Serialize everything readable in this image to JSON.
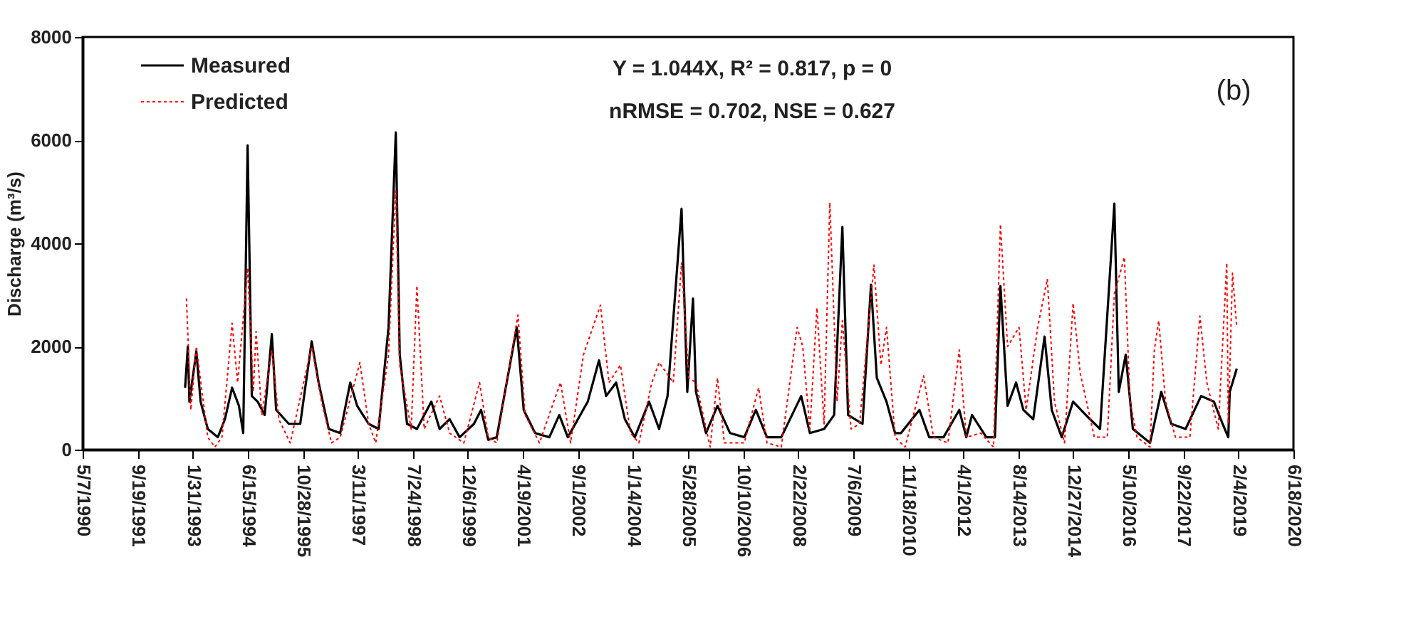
{
  "chart_data": {
    "type": "line",
    "ylabel": "Discharge (m³/s)",
    "annotations": [
      "Y = 1.044X, R² = 0.817, p = 0",
      "nRMSE = 0.702, NSE = 0.627",
      "(b)"
    ],
    "xlim": [
      "1990-05-07",
      "2020-06-18"
    ],
    "xticks": [
      {
        "value": "1990-05-07",
        "label": "5/7/1990"
      },
      {
        "value": "1991-09-19",
        "label": "9/19/1991"
      },
      {
        "value": "1993-01-31",
        "label": "1/31/1993"
      },
      {
        "value": "1994-06-15",
        "label": "6/15/1994"
      },
      {
        "value": "1995-10-28",
        "label": "10/28/1995"
      },
      {
        "value": "1997-03-11",
        "label": "3/11/1997"
      },
      {
        "value": "1998-07-24",
        "label": "7/24/1998"
      },
      {
        "value": "1999-12-06",
        "label": "12/6/1999"
      },
      {
        "value": "2001-04-19",
        "label": "4/19/2001"
      },
      {
        "value": "2002-09-01",
        "label": "9/1/2002"
      },
      {
        "value": "2004-01-14",
        "label": "1/14/2004"
      },
      {
        "value": "2005-05-28",
        "label": "5/28/2005"
      },
      {
        "value": "2006-10-10",
        "label": "10/10/2006"
      },
      {
        "value": "2008-02-22",
        "label": "2/22/2008"
      },
      {
        "value": "2009-07-06",
        "label": "7/6/2009"
      },
      {
        "value": "2010-11-18",
        "label": "11/18/2010"
      },
      {
        "value": "2012-04-01",
        "label": "4/1/2012"
      },
      {
        "value": "2013-08-14",
        "label": "8/14/2013"
      },
      {
        "value": "2014-12-27",
        "label": "12/27/2014"
      },
      {
        "value": "2016-05-10",
        "label": "5/10/2016"
      },
      {
        "value": "2017-09-22",
        "label": "9/22/2017"
      },
      {
        "value": "2019-02-04",
        "label": "2/4/2019"
      },
      {
        "value": "2020-06-18",
        "label": "6/18/2020"
      }
    ],
    "ylim": [
      0,
      8000
    ],
    "yticks": [
      0,
      2000,
      4000,
      6000,
      8000
    ],
    "grid": false,
    "legend": "top left",
    "marker": "none",
    "series": [
      {
        "name": "Measured",
        "color": "#000000",
        "line_style": "solid",
        "x": [
          "1992-11-23",
          "1992-12-18",
          "1993-01-01",
          "1993-03-05",
          "1993-04-13",
          "1993-06-17",
          "1993-09-16",
          "1993-11-20",
          "1994-01-24",
          "1994-03-27",
          "1994-05-05",
          "1994-06-14",
          "1994-07-22",
          "1994-09-13",
          "1994-11-16",
          "1995-01-20",
          "1995-02-28",
          "1995-06-23",
          "1995-10-05",
          "1996-01-17",
          "1996-03-20",
          "1996-06-20",
          "1996-10-02",
          "1997-01-01",
          "1997-03-05",
          "1997-06-17",
          "1997-09-16",
          "1997-12-15",
          "1998-02-19",
          "1998-03-27",
          "1998-06-01",
          "1998-08-30",
          "1999-01-08",
          "1999-03-24",
          "1999-06-23",
          "1999-09-22",
          "2000-01-30",
          "2000-04-04",
          "2000-06-08",
          "2000-08-24",
          "2001-02-22",
          "2001-04-26",
          "2001-08-08",
          "2001-12-15",
          "2002-03-15",
          "2002-06-01",
          "2002-11-29",
          "2003-03-11",
          "2003-05-15",
          "2003-08-14",
          "2003-11-01",
          "2004-01-30",
          "2004-06-08",
          "2004-09-07",
          "2004-11-23",
          "2005-03-30",
          "2005-05-21",
          "2005-07-12",
          "2005-08-08",
          "2005-11-07",
          "2006-02-19",
          "2006-06-14",
          "2006-10-21",
          "2007-02-03",
          "2007-05-15",
          "2007-09-22",
          "2008-03-21",
          "2008-06-08",
          "2008-10-15",
          "2009-01-14",
          "2009-03-30",
          "2009-05-21",
          "2009-09-29",
          "2009-12-15",
          "2010-02-06",
          "2010-05-05",
          "2010-07-22",
          "2010-09-13",
          "2011-02-28",
          "2011-05-28",
          "2011-10-05",
          "2012-02-25",
          "2012-04-29",
          "2012-06-20",
          "2012-10-28",
          "2013-01-14",
          "2013-03-05",
          "2013-05-09",
          "2013-07-25",
          "2013-09-29",
          "2013-12-28",
          "2014-04-10",
          "2014-06-14",
          "2014-09-13",
          "2014-12-25",
          "2015-04-20",
          "2015-08-27",
          "2016-01-04",
          "2016-02-13",
          "2016-04-16",
          "2016-06-20",
          "2016-11-23",
          "2017-03-05",
          "2017-06-04",
          "2017-10-12",
          "2018-03-02",
          "2018-06-26",
          "2018-09-13",
          "2018-11-04",
          "2018-11-17",
          "2019-01-20"
        ],
        "values": [
          1200,
          2000,
          930,
          1900,
          930,
          400,
          240,
          590,
          1200,
          850,
          320,
          5900,
          1040,
          930,
          670,
          2240,
          770,
          500,
          500,
          2100,
          1300,
          400,
          320,
          1300,
          850,
          500,
          400,
          2370,
          6150,
          1840,
          500,
          400,
          930,
          400,
          590,
          240,
          500,
          770,
          190,
          240,
          2370,
          770,
          320,
          240,
          670,
          240,
          930,
          1730,
          1040,
          1300,
          590,
          240,
          930,
          400,
          1040,
          4670,
          1120,
          2930,
          1120,
          320,
          850,
          320,
          240,
          770,
          240,
          240,
          1040,
          320,
          400,
          670,
          4320,
          670,
          500,
          3200,
          1390,
          930,
          320,
          320,
          770,
          240,
          240,
          770,
          240,
          670,
          240,
          240,
          3170,
          850,
          1300,
          770,
          590,
          2190,
          770,
          240,
          930,
          670,
          400,
          4770,
          1120,
          1840,
          400,
          130,
          1120,
          500,
          400,
          1040,
          930,
          500,
          240,
          1120,
          1570
        ]
      },
      {
        "name": "Predicted",
        "color": "#ff0000",
        "line_style": "dotted",
        "x": [
          "1992-12-05",
          "1993-01-14",
          "1993-03-05",
          "1993-06-17",
          "1993-08-21",
          "1993-10-24",
          "1994-01-24",
          "1994-03-15",
          "1994-06-14",
          "1994-08-05",
          "1994-08-30",
          "1994-10-21",
          "1995-01-20",
          "1995-03-24",
          "1995-07-06",
          "1996-01-17",
          "1996-04-16",
          "1996-07-15",
          "1996-10-02",
          "1997-03-30",
          "1997-06-17",
          "1997-08-21",
          "1997-12-15",
          "1998-02-19",
          "1998-03-27",
          "1998-07-09",
          "1998-08-30",
          "1998-11-04",
          "1999-03-24",
          "1999-06-23",
          "1999-10-30",
          "2000-03-21",
          "2000-06-08",
          "2000-08-24",
          "2001-03-05",
          "2001-05-09",
          "2001-09-16",
          "2002-01-24",
          "2002-03-27",
          "2002-06-26",
          "2002-10-21",
          "2003-03-24",
          "2003-06-10",
          "2003-09-22",
          "2003-12-22",
          "2004-03-08",
          "2004-07-03",
          "2004-09-07",
          "2005-01-14",
          "2005-03-30",
          "2005-06-04",
          "2005-08-08",
          "2005-12-15",
          "2006-02-19",
          "2006-04-23",
          "2006-10-21",
          "2007-02-28",
          "2007-05-15",
          "2007-09-22",
          "2008-02-13",
          "2008-04-04",
          "2008-06-08",
          "2008-08-11",
          "2008-10-15",
          "2008-12-06",
          "2009-02-10",
          "2009-03-30",
          "2009-06-17",
          "2009-09-03",
          "2010-01-11",
          "2010-03-15",
          "2010-05-05",
          "2010-07-22",
          "2010-10-21",
          "2011-04-07",
          "2011-07-06",
          "2011-11-14",
          "2012-02-25",
          "2012-04-29",
          "2012-09-07",
          "2013-01-01",
          "2013-03-05",
          "2013-05-09",
          "2013-08-21",
          "2013-10-24",
          "2014-02-06",
          "2014-05-05",
          "2014-07-09",
          "2014-10-08",
          "2014-12-25",
          "2015-02-28",
          "2015-07-06",
          "2015-11-01",
          "2016-01-04",
          "2016-02-25",
          "2016-04-04",
          "2016-05-25",
          "2016-07-28",
          "2016-11-23",
          "2017-01-01",
          "2017-02-10",
          "2017-04-13",
          "2017-07-12",
          "2017-11-20",
          "2018-02-19",
          "2018-04-23",
          "2018-08-05",
          "2018-10-21",
          "2018-11-04",
          "2018-12-12",
          "2019-01-20"
        ],
        "values": [
          2930,
          770,
          2000,
          240,
          50,
          240,
          2450,
          1300,
          3520,
          1120,
          2290,
          670,
          1930,
          590,
          130,
          2000,
          930,
          130,
          240,
          1690,
          500,
          130,
          1840,
          5020,
          1640,
          400,
          3180,
          400,
          1040,
          320,
          130,
          1300,
          240,
          130,
          2610,
          670,
          130,
          930,
          1300,
          130,
          1840,
          2800,
          1300,
          1640,
          320,
          130,
          1300,
          1690,
          1300,
          3620,
          1390,
          1300,
          50,
          1390,
          130,
          130,
          1200,
          130,
          50,
          2370,
          2000,
          400,
          2750,
          500,
          4790,
          930,
          2500,
          400,
          500,
          3580,
          1640,
          2370,
          240,
          50,
          1430,
          240,
          130,
          1930,
          240,
          320,
          50,
          4370,
          2000,
          2370,
          770,
          2370,
          3310,
          930,
          130,
          2840,
          1480,
          240,
          240,
          3020,
          3420,
          3730,
          930,
          240,
          50,
          1930,
          2500,
          930,
          240,
          240,
          2590,
          1300,
          400,
          3620,
          500,
          3420,
          2370
        ]
      }
    ]
  }
}
